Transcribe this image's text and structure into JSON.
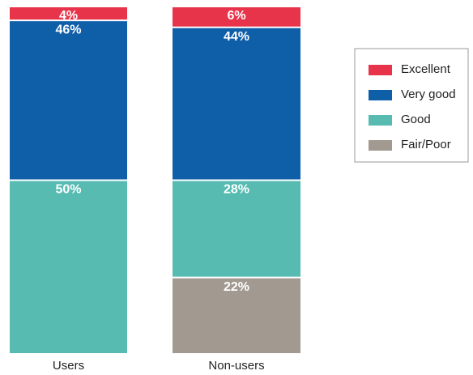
{
  "chart_data": {
    "type": "stacked_bar",
    "categories": [
      "Users",
      "Non-users"
    ],
    "ylim": [
      0,
      100
    ],
    "series": [
      {
        "name": "Fair/Poor",
        "color": "#a29a91",
        "values": [
          null,
          22
        ],
        "value_labels": [
          null,
          "22%"
        ]
      },
      {
        "name": "Good",
        "color": "#57bbb2",
        "values": [
          50,
          28
        ],
        "value_labels": [
          "50%",
          "28%"
        ]
      },
      {
        "name": "Very good",
        "color": "#0f5ea8",
        "values": [
          46,
          44
        ],
        "value_labels": [
          "46%",
          "44%"
        ]
      },
      {
        "name": "Excellent",
        "color": "#e8344a",
        "values": [
          4,
          6
        ],
        "value_labels": [
          "4%",
          "6%"
        ]
      }
    ]
  }
}
